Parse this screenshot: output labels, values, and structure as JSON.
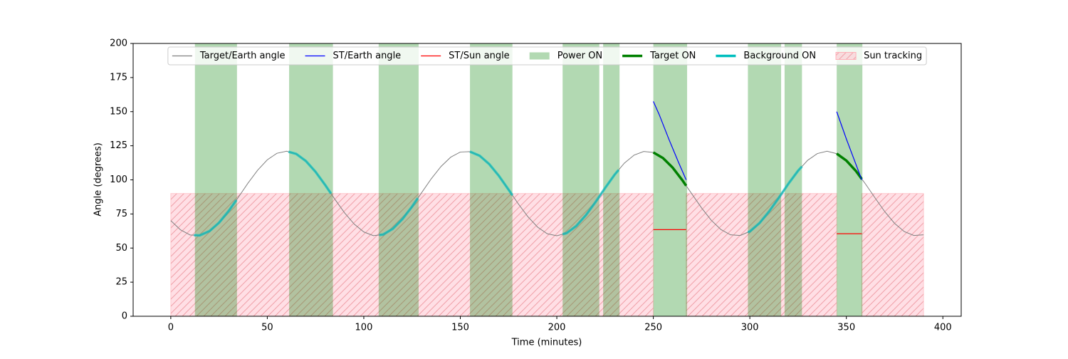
{
  "chart_data": {
    "type": "line",
    "xlabel": "Time (minutes)",
    "ylabel": "Angle (degrees)",
    "xlim": [
      -19.5,
      409.5
    ],
    "ylim": [
      0,
      200
    ],
    "xticks": [
      0,
      50,
      100,
      150,
      200,
      250,
      300,
      350,
      400
    ],
    "yticks": [
      0,
      25,
      50,
      75,
      100,
      125,
      150,
      175,
      200
    ],
    "legend": "upper center",
    "series": [
      {
        "name": "Target/Earth angle",
        "color": "#808080",
        "x": [
          0,
          5,
          10,
          15,
          20,
          25,
          30,
          35,
          40,
          45,
          50,
          55,
          60,
          65,
          70,
          75,
          80,
          85,
          90,
          95,
          100,
          105,
          110,
          115,
          120,
          125,
          130,
          135,
          140,
          145,
          150,
          155,
          160,
          165,
          170,
          175,
          180,
          185,
          190,
          195,
          200,
          205,
          210,
          215,
          220,
          225,
          230,
          235,
          240,
          245,
          250,
          255,
          260,
          265,
          270,
          275,
          280,
          285,
          290,
          295,
          300,
          305,
          310,
          315,
          320,
          325,
          330,
          335,
          340,
          345,
          350,
          355,
          360,
          365,
          370,
          375,
          380,
          385,
          390
        ],
        "values": [
          70.1,
          63.4,
          59.6,
          59.3,
          62.4,
          68.6,
          77.2,
          87.2,
          97.6,
          107.1,
          114.7,
          119.5,
          121.0,
          119.0,
          113.8,
          105.9,
          96.2,
          85.8,
          75.9,
          67.6,
          61.8,
          59.1,
          59.9,
          64.1,
          71.2,
          80.4,
          90.7,
          100.9,
          109.8,
          116.6,
          120.4,
          120.7,
          117.7,
          111.5,
          102.9,
          92.8,
          82.5,
          73.0,
          65.4,
          60.5,
          59.0,
          60.9,
          66.1,
          74.0,
          83.6,
          94.0,
          103.9,
          112.3,
          118.1,
          120.8,
          120.1,
          116.0,
          109.0,
          99.8,
          89.6,
          79.4,
          70.4,
          63.6,
          59.7,
          59.2,
          62.2,
          68.3,
          76.9,
          86.8,
          97.2,
          106.7,
          114.4,
          119.3,
          121.0,
          119.2,
          114.1,
          106.4,
          96.8,
          86.5,
          76.5,
          68.1,
          62.1,
          59.2,
          59.7
        ]
      },
      {
        "name": "ST/Earth angle",
        "color": "#0000ff",
        "x": [
          250,
          253,
          258,
          263,
          267,
          null,
          345,
          350,
          354,
          358
        ],
        "values": [
          157.5,
          148,
          130,
          113,
          100,
          null,
          150,
          130,
          115,
          100
        ]
      },
      {
        "name": "ST/Sun angle",
        "color": "#ff0000",
        "x": [
          250,
          267,
          null,
          345,
          358
        ],
        "values": [
          63.5,
          63.5,
          null,
          60.5,
          60.5
        ]
      }
    ],
    "bands": [
      {
        "name": "Power ON",
        "color": "#008000",
        "alpha": 0.3,
        "intervals": [
          [
            12.5,
            34.3
          ],
          [
            61.3,
            84
          ],
          [
            107.7,
            128.4
          ],
          [
            155,
            177
          ],
          [
            203,
            222
          ],
          [
            224,
            232.5
          ],
          [
            250,
            267.5
          ],
          [
            299,
            316.2
          ],
          [
            318,
            327
          ],
          [
            345,
            358.3
          ]
        ]
      },
      {
        "name": "Sun tracking",
        "color": "#ffc0cb",
        "alpha": 0.5,
        "hatch": true,
        "ymax": 90,
        "intervals": [
          [
            0,
            250
          ],
          [
            267,
            345
          ],
          [
            358,
            390
          ]
        ]
      }
    ],
    "highlights": [
      {
        "name": "Target ON",
        "color": "#008000",
        "alpha": 1,
        "intervals": [
          [
            250,
            267
          ],
          [
            345,
            358
          ]
        ]
      },
      {
        "name": "Background ON",
        "color": "#00bfbf",
        "alpha": 0.7,
        "intervals": [
          [
            12,
            34
          ],
          [
            61,
            83
          ],
          [
            108,
            128
          ],
          [
            155,
            177
          ],
          [
            203,
            232
          ],
          [
            299,
            327
          ]
        ]
      }
    ]
  }
}
